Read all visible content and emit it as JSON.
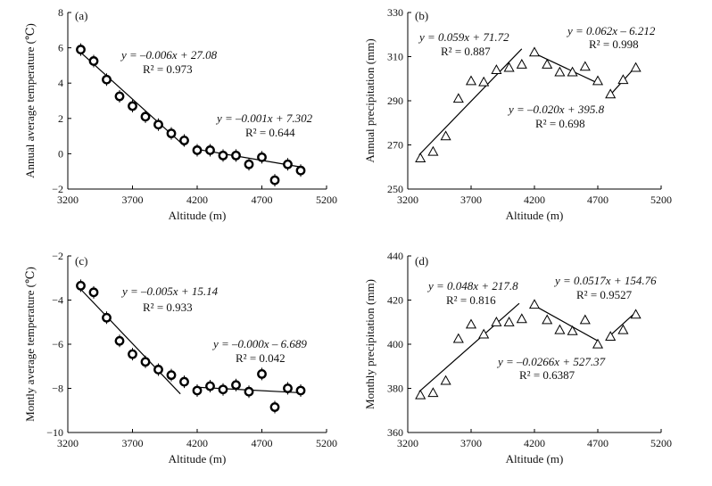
{
  "chart_data": [
    {
      "panel": "(a)",
      "type": "scatter",
      "marker": "circle",
      "xlabel": "Altitude (m)",
      "ylabel": "Annual average temperature (℃)",
      "xlim": [
        3200,
        5200
      ],
      "ylim": [
        -2,
        8
      ],
      "xticks": [
        "3200",
        "3700",
        "4200",
        "4700",
        "5200"
      ],
      "yticks": [
        "−2",
        "0",
        "2",
        "4",
        "6",
        "8"
      ],
      "points": [
        {
          "x": 3300,
          "y": 5.9
        },
        {
          "x": 3400,
          "y": 5.25
        },
        {
          "x": 3500,
          "y": 4.2
        },
        {
          "x": 3600,
          "y": 3.25
        },
        {
          "x": 3700,
          "y": 2.7
        },
        {
          "x": 3800,
          "y": 2.1
        },
        {
          "x": 3900,
          "y": 1.65
        },
        {
          "x": 4000,
          "y": 1.15
        },
        {
          "x": 4100,
          "y": 0.75
        },
        {
          "x": 4200,
          "y": 0.2
        },
        {
          "x": 4300,
          "y": 0.2
        },
        {
          "x": 4400,
          "y": -0.1
        },
        {
          "x": 4500,
          "y": -0.1
        },
        {
          "x": 4600,
          "y": -0.6
        },
        {
          "x": 4700,
          "y": -0.2
        },
        {
          "x": 4800,
          "y": -1.5
        },
        {
          "x": 4900,
          "y": -0.6
        },
        {
          "x": 5000,
          "y": -0.95
        }
      ],
      "fits": [
        {
          "from": [
            3290,
            5.8
          ],
          "to": [
            4100,
            0.45
          ],
          "equation": "y = –0.006x + 27.08",
          "r2": "R² = 0.973"
        },
        {
          "from": [
            4200,
            0.25
          ],
          "to": [
            5000,
            -0.75
          ],
          "equation": "y = –0.001x + 7.302",
          "r2": "R² = 0.644"
        }
      ]
    },
    {
      "panel": "(b)",
      "type": "scatter",
      "marker": "triangle",
      "xlabel": "Altitude (m)",
      "ylabel": "Annual precipitation (mm)",
      "xlim": [
        3200,
        5200
      ],
      "ylim": [
        250,
        330
      ],
      "xticks": [
        "3200",
        "3700",
        "4200",
        "4700",
        "5200"
      ],
      "yticks": [
        "250",
        "270",
        "290",
        "310",
        "330"
      ],
      "points": [
        {
          "x": 3300,
          "y": 264
        },
        {
          "x": 3400,
          "y": 267
        },
        {
          "x": 3500,
          "y": 274
        },
        {
          "x": 3600,
          "y": 291
        },
        {
          "x": 3700,
          "y": 299
        },
        {
          "x": 3800,
          "y": 298.5
        },
        {
          "x": 3900,
          "y": 304
        },
        {
          "x": 4000,
          "y": 305
        },
        {
          "x": 4100,
          "y": 306.5
        },
        {
          "x": 4200,
          "y": 312
        },
        {
          "x": 4300,
          "y": 306.5
        },
        {
          "x": 4400,
          "y": 303
        },
        {
          "x": 4500,
          "y": 303
        },
        {
          "x": 4600,
          "y": 305.5
        },
        {
          "x": 4700,
          "y": 299
        },
        {
          "x": 4800,
          "y": 293
        },
        {
          "x": 4900,
          "y": 299.5
        },
        {
          "x": 5000,
          "y": 305
        }
      ],
      "fits": [
        {
          "from": [
            3290,
            265.5
          ],
          "to": [
            4100,
            313.5
          ],
          "equation": "y = 0.059x + 71.72",
          "r2": "R² = 0.887"
        },
        {
          "from": [
            4200,
            311.5
          ],
          "to": [
            4700,
            298
          ],
          "equation": "y = –0.020x + 395.8",
          "r2": "R² = 0.698"
        },
        {
          "from": [
            4780,
            291.5
          ],
          "to": [
            5000,
            305.5
          ],
          "equation": "y = 0.062x – 6.212",
          "r2": "R² = 0.998"
        }
      ]
    },
    {
      "panel": "(c)",
      "type": "scatter",
      "marker": "circle",
      "xlabel": "Altitude (m)",
      "ylabel": "Montly average temperature (℃)",
      "xlim": [
        3200,
        5200
      ],
      "ylim": [
        -10,
        -2
      ],
      "xticks": [
        "3200",
        "3700",
        "4200",
        "4700",
        "5200"
      ],
      "yticks": [
        "−10",
        "−8",
        "−6",
        "−4",
        "−2"
      ],
      "points": [
        {
          "x": 3300,
          "y": -3.35
        },
        {
          "x": 3400,
          "y": -3.65
        },
        {
          "x": 3500,
          "y": -4.8
        },
        {
          "x": 3600,
          "y": -5.85
        },
        {
          "x": 3700,
          "y": -6.45
        },
        {
          "x": 3800,
          "y": -6.8
        },
        {
          "x": 3900,
          "y": -7.15
        },
        {
          "x": 4000,
          "y": -7.4
        },
        {
          "x": 4100,
          "y": -7.7
        },
        {
          "x": 4200,
          "y": -8.1
        },
        {
          "x": 4300,
          "y": -7.9
        },
        {
          "x": 4400,
          "y": -8.05
        },
        {
          "x": 4500,
          "y": -7.85
        },
        {
          "x": 4600,
          "y": -8.15
        },
        {
          "x": 4700,
          "y": -7.35
        },
        {
          "x": 4800,
          "y": -8.85
        },
        {
          "x": 4900,
          "y": -8.0
        },
        {
          "x": 5000,
          "y": -8.1
        }
      ],
      "fits": [
        {
          "from": [
            3290,
            -3.45
          ],
          "to": [
            4070,
            -8.25
          ],
          "equation": "y = –0.005x + 15.14",
          "r2": "R² = 0.933"
        },
        {
          "from": [
            4200,
            -7.95
          ],
          "to": [
            5000,
            -8.2
          ],
          "equation": "y = –0.000x – 6.689",
          "r2": "R² = 0.042"
        }
      ]
    },
    {
      "panel": "(d)",
      "type": "scatter",
      "marker": "triangle",
      "xlabel": "Altitude (m)",
      "ylabel": "Monthly precipitation (mm)",
      "xlim": [
        3200,
        5200
      ],
      "ylim": [
        360,
        440
      ],
      "xticks": [
        "3200",
        "3700",
        "4200",
        "4700",
        "5200"
      ],
      "yticks": [
        "360",
        "380",
        "400",
        "420",
        "440"
      ],
      "points": [
        {
          "x": 3300,
          "y": 377
        },
        {
          "x": 3400,
          "y": 378
        },
        {
          "x": 3500,
          "y": 383.5
        },
        {
          "x": 3600,
          "y": 402.5
        },
        {
          "x": 3700,
          "y": 409
        },
        {
          "x": 3800,
          "y": 404.5
        },
        {
          "x": 3900,
          "y": 410
        },
        {
          "x": 4000,
          "y": 410
        },
        {
          "x": 4100,
          "y": 411.5
        },
        {
          "x": 4200,
          "y": 418
        },
        {
          "x": 4300,
          "y": 411
        },
        {
          "x": 4400,
          "y": 406.5
        },
        {
          "x": 4500,
          "y": 406
        },
        {
          "x": 4600,
          "y": 411
        },
        {
          "x": 4700,
          "y": 400
        },
        {
          "x": 4800,
          "y": 403.5
        },
        {
          "x": 4900,
          "y": 406.5
        },
        {
          "x": 5000,
          "y": 413.5
        }
      ],
      "fits": [
        {
          "from": [
            3290,
            378.5
          ],
          "to": [
            4080,
            418.5
          ],
          "equation": "y = 0.048x + 217.8",
          "r2": "R² = 0.816"
        },
        {
          "from": [
            4200,
            417.5
          ],
          "to": [
            4700,
            401.5
          ],
          "equation": "y = –0.0266x + 527.37",
          "r2": "R² = 0.6387"
        },
        {
          "from": [
            4770,
            402.5
          ],
          "to": [
            5000,
            414.5
          ],
          "equation": "y = 0.0517x + 154.76",
          "r2": "R² = 0.9527"
        }
      ]
    }
  ]
}
